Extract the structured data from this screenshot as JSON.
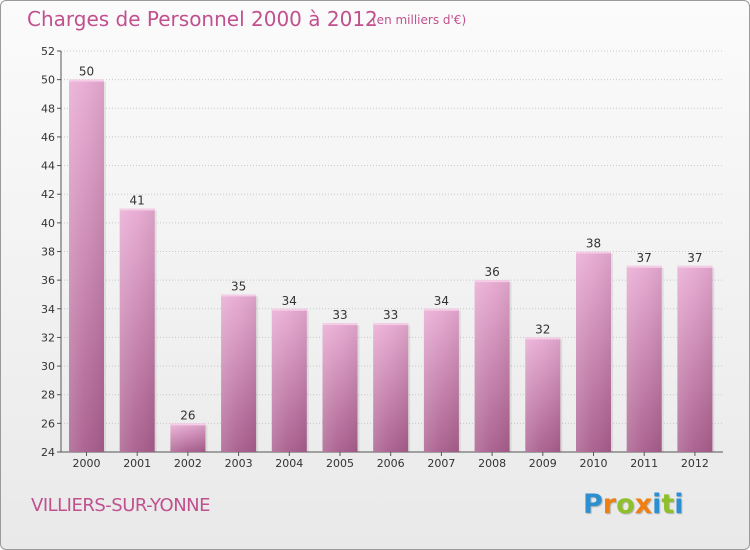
{
  "header": {
    "title": "Charges de Personnel 2000 à 2012",
    "unit_note": "(en milliers d'€)"
  },
  "footer": {
    "commune": "VILLIERS-SUR-YONNE",
    "brand": [
      "P",
      "r",
      "o",
      "x",
      "i",
      "t",
      "i"
    ],
    "brand_colors": [
      "#2e8fd0",
      "#f07f12",
      "#8fbf2a",
      "#f07f12",
      "#2e8fd0",
      "#8fbf2a",
      "#2e8fd0"
    ]
  },
  "colors": {
    "accent": "#c0508e",
    "bar_top": "#e8aad2",
    "bar_bottom": "#a85d8c",
    "grid": "#c8c8c8"
  },
  "chart_data": {
    "type": "bar",
    "title": "Charges de Personnel 2000 à 2012",
    "xlabel": "",
    "ylabel": "",
    "categories": [
      "2000",
      "2001",
      "2002",
      "2003",
      "2004",
      "2005",
      "2006",
      "2007",
      "2008",
      "2009",
      "2010",
      "2011",
      "2012"
    ],
    "values": [
      50,
      41,
      26,
      35,
      34,
      33,
      33,
      34,
      36,
      32,
      38,
      37,
      37
    ],
    "ylim": [
      24,
      52
    ],
    "yticks": [
      24,
      26,
      28,
      30,
      32,
      34,
      36,
      38,
      40,
      42,
      44,
      46,
      48,
      50,
      52
    ],
    "grid": true,
    "legend": "none"
  }
}
